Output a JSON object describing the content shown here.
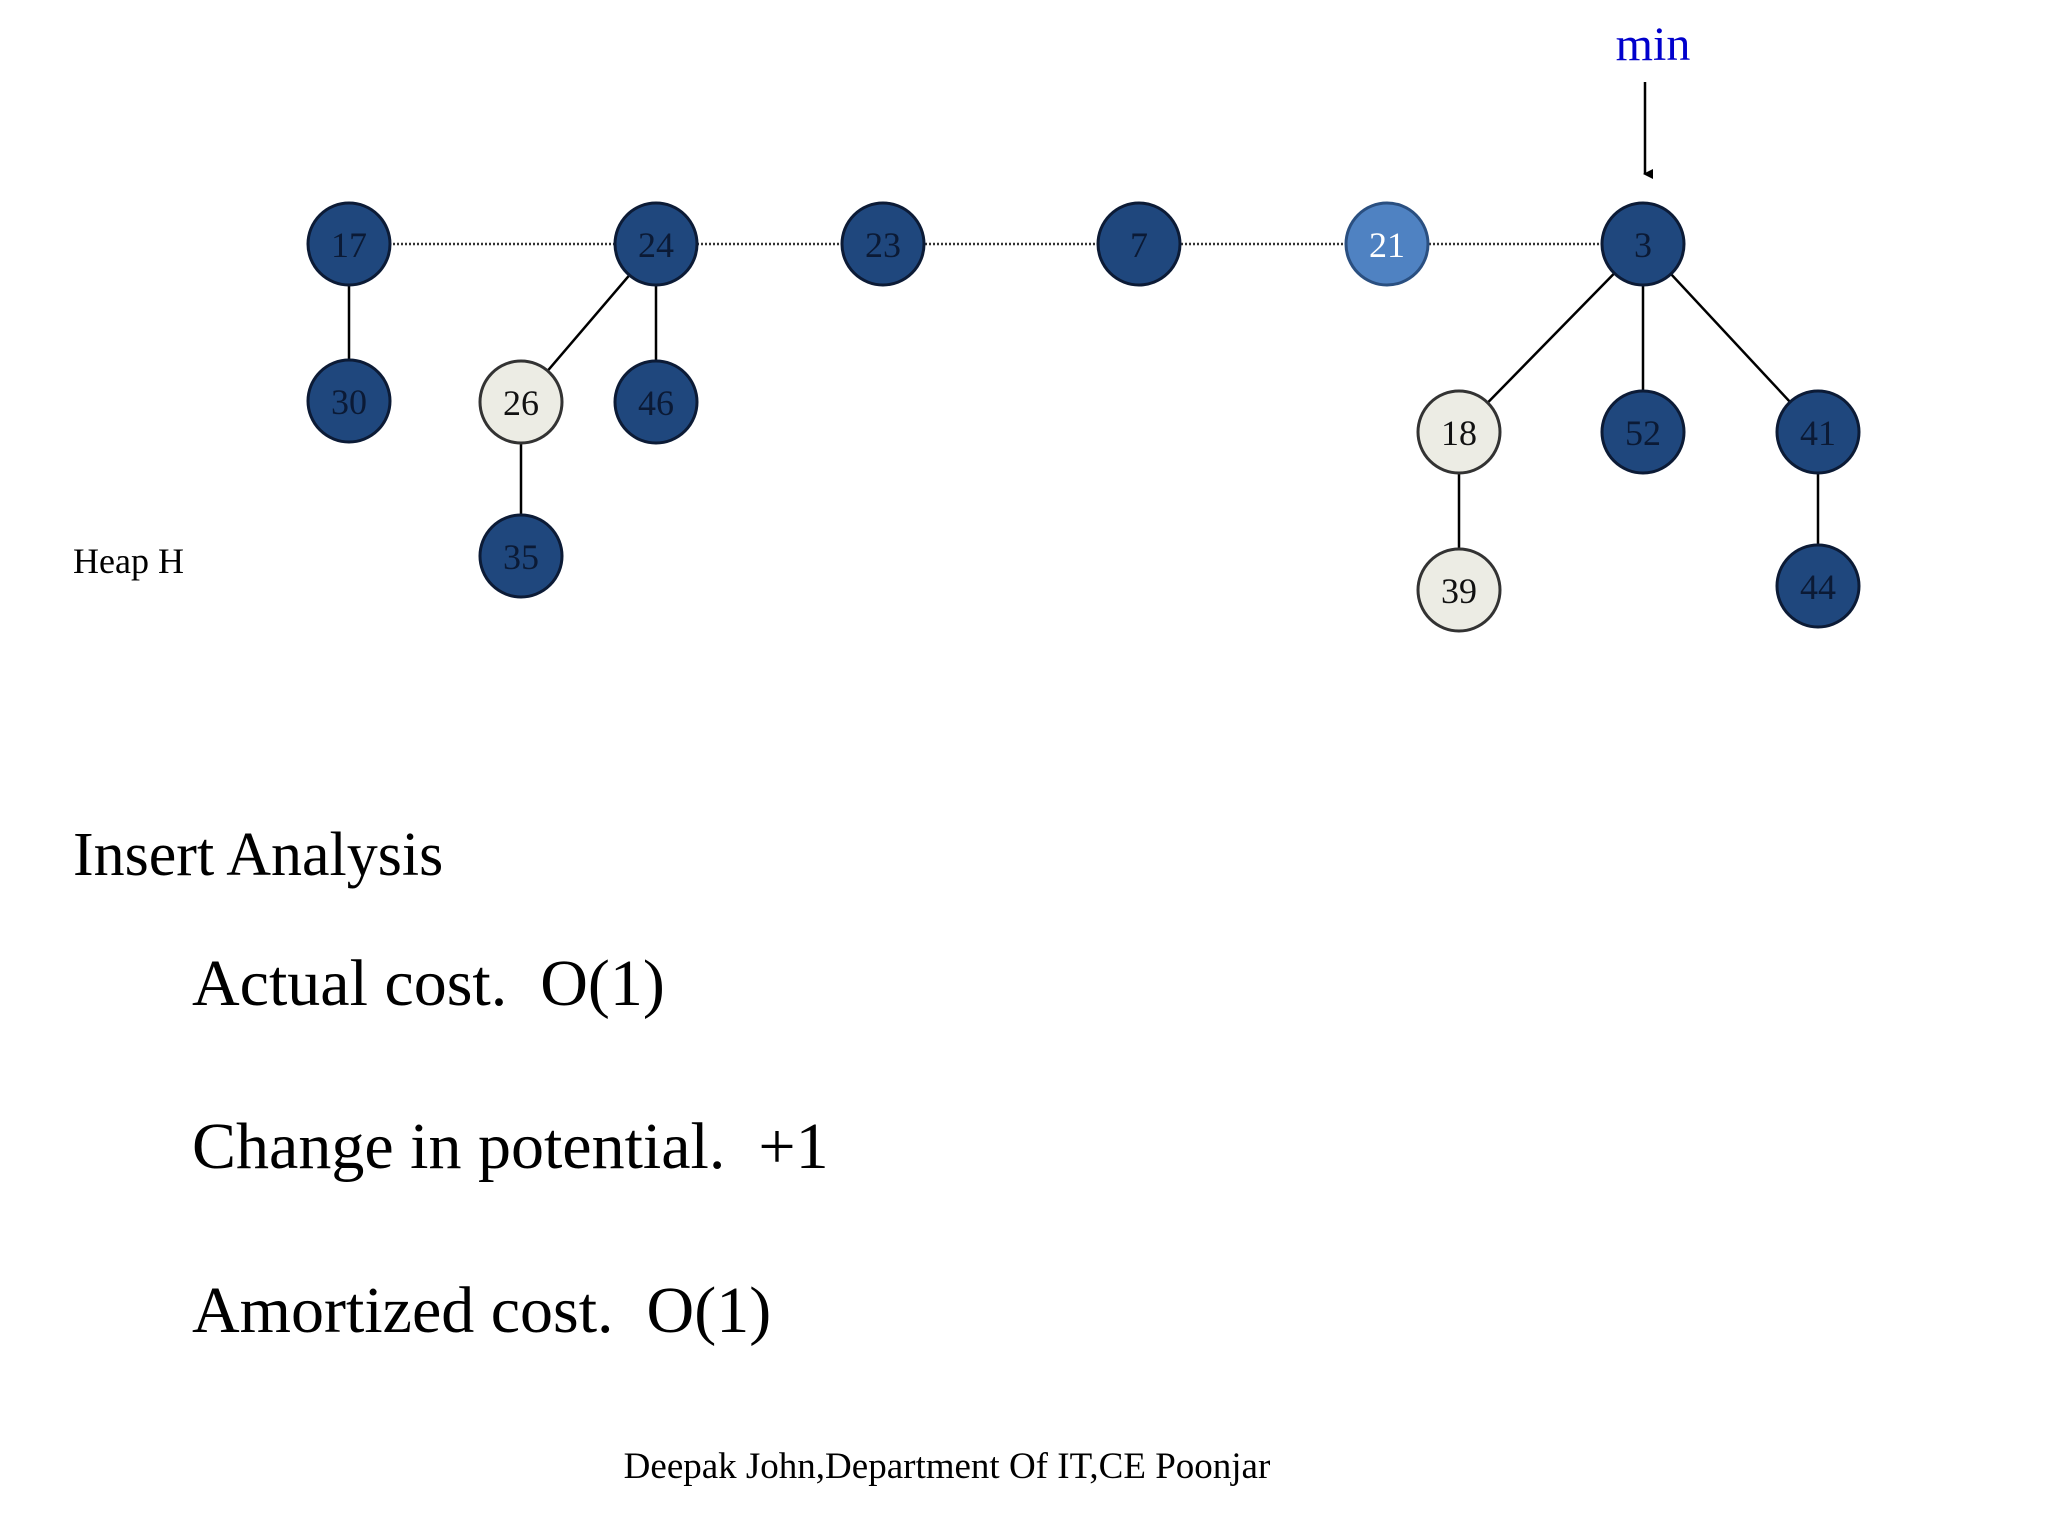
{
  "min_label": "min",
  "heap_label": "Heap H",
  "nodes": [
    "17",
    "24",
    "23",
    "7",
    "21",
    "3",
    "30",
    "26",
    "46",
    "35",
    "18",
    "52",
    "41",
    "39",
    "44"
  ],
  "title": "Insert Analysis",
  "lines": [
    "Actual cost.  O(1)",
    "Change in potential.  +1",
    "Amortized cost.  O(1)"
  ],
  "footer": "Deepak John,Department Of IT,CE Poonjar"
}
